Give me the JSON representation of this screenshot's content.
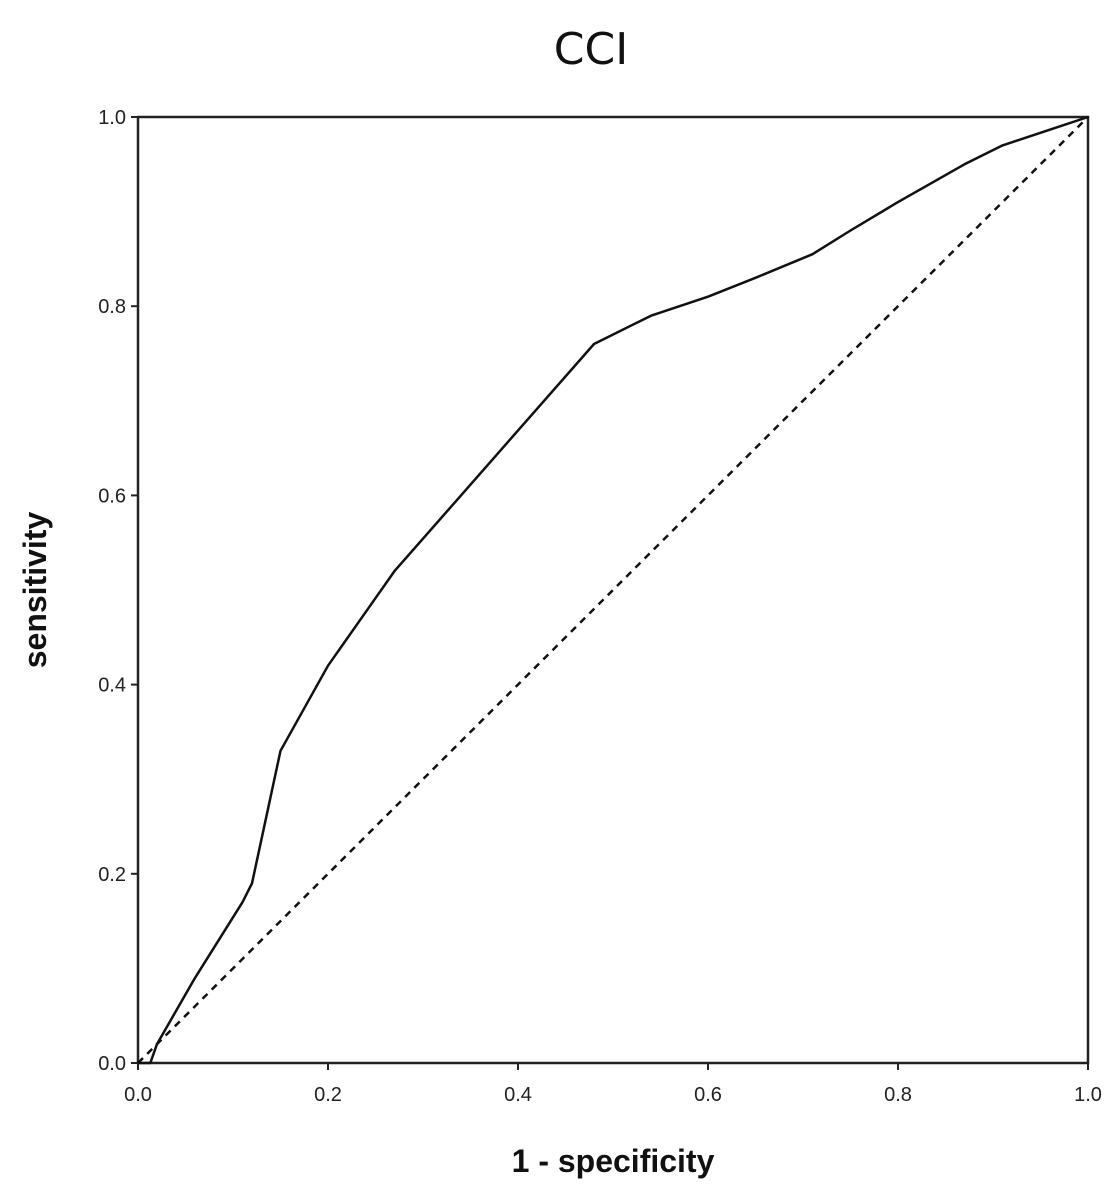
{
  "chart_data": {
    "type": "line",
    "title": "CCI",
    "xlabel": "1 - specificity",
    "ylabel": "sensitivity",
    "xlim": [
      0,
      1
    ],
    "ylim": [
      0,
      1
    ],
    "x_ticks": [
      "0.0",
      "0.2",
      "0.4",
      "0.6",
      "0.8",
      "1.0"
    ],
    "y_ticks": [
      "0.0",
      "0.2",
      "0.4",
      "0.6",
      "0.8",
      "1.0"
    ],
    "grid": false,
    "series": [
      {
        "style": "solid",
        "color": "#111111",
        "x": [
          0.0,
          0.013,
          0.02,
          0.06,
          0.11,
          0.12,
          0.15,
          0.2,
          0.27,
          0.34,
          0.41,
          0.48,
          0.54,
          0.6,
          0.65,
          0.71,
          0.75,
          0.8,
          0.87,
          0.91,
          1.0
        ],
        "y": [
          0.0,
          0.0,
          0.02,
          0.09,
          0.17,
          0.19,
          0.33,
          0.42,
          0.52,
          0.6,
          0.68,
          0.76,
          0.79,
          0.81,
          0.83,
          0.855,
          0.88,
          0.91,
          0.95,
          0.97,
          1.0
        ]
      },
      {
        "style": "dashed",
        "color": "#111111",
        "x": [
          0.0,
          1.0
        ],
        "y": [
          0.0,
          1.0
        ]
      }
    ]
  }
}
